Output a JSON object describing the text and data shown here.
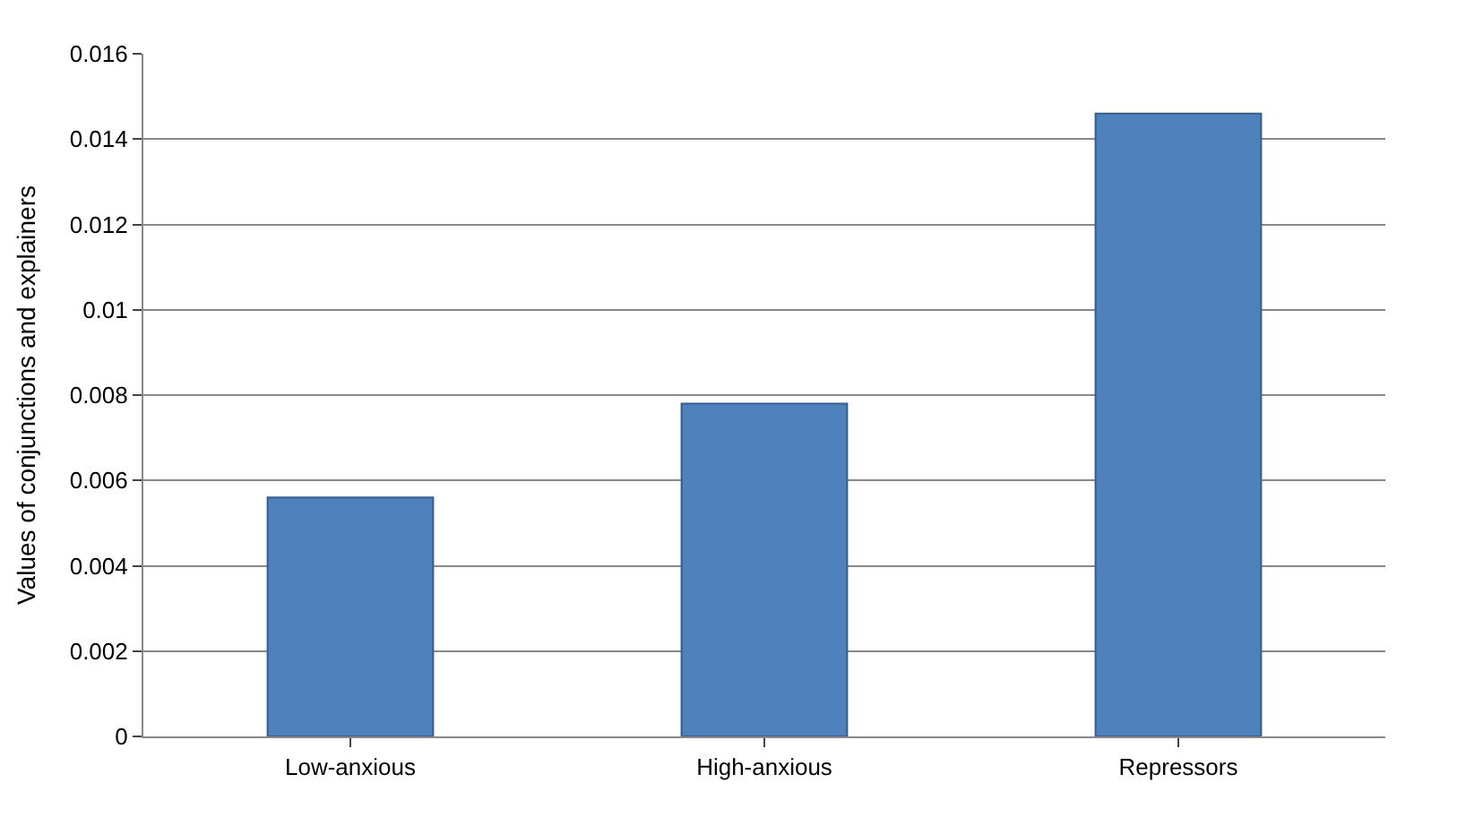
{
  "chart_data": {
    "type": "bar",
    "ylabel": "Values of conjunctions and explainers",
    "categories": [
      "Low-anxious",
      "High-anxious",
      "Repressors"
    ],
    "values": [
      0.0056,
      0.0078,
      0.0146
    ],
    "color": "#4f81bd",
    "ylim": [
      0,
      0.016
    ],
    "yticks": [
      0,
      0.002,
      0.004,
      0.006,
      0.008,
      0.01,
      0.012,
      0.014,
      0.016
    ],
    "grid": "y"
  }
}
